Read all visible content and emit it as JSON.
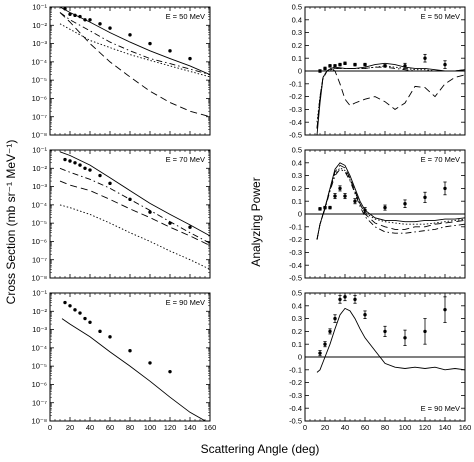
{
  "figure": {
    "xlabel": "Scattering Angle (deg)",
    "ylabel_left": "Cross Section (mb sr⁻¹ MeV⁻¹)",
    "ylabel_right": "Analyzing Power"
  },
  "chart_data": [
    {
      "type": "line",
      "quantity": "cross_section",
      "energy_label": "E = 50 MeV",
      "ylog": true,
      "xlim": [
        0,
        160
      ],
      "ylim": [
        1e-08,
        0.1
      ],
      "xticks": [
        0,
        20,
        40,
        60,
        80,
        100,
        120,
        140,
        160
      ],
      "yticks": [
        1e-08,
        1e-07,
        1e-06,
        1e-05,
        0.0001,
        0.001,
        0.01,
        0.1
      ],
      "ytick_labels": [
        "10⁻⁸",
        "10⁻⁷",
        "10⁻⁶",
        "10⁻⁵",
        "10⁻⁴",
        "10⁻³",
        "10⁻²",
        "10⁻¹"
      ],
      "data_points": {
        "x": [
          15,
          20,
          25,
          30,
          35,
          40,
          50,
          60,
          80,
          100,
          120,
          140
        ],
        "y": [
          0.08,
          0.04,
          0.035,
          0.03,
          0.02,
          0.02,
          0.012,
          0.007,
          0.003,
          0.001,
          0.0004,
          0.00015
        ]
      },
      "curves": [
        {
          "style": "solid",
          "x": [
            10,
            20,
            40,
            60,
            80,
            100,
            120,
            140,
            160
          ],
          "y": [
            0.1,
            0.05,
            0.015,
            0.004,
            0.0012,
            0.0004,
            0.00015,
            6e-05,
            2e-05
          ]
        },
        {
          "style": "dashdot",
          "x": [
            10,
            20,
            40,
            60,
            80,
            100,
            120,
            140,
            160
          ],
          "y": [
            0.05,
            0.02,
            0.005,
            0.0012,
            0.0004,
            0.00015,
            8e-05,
            4e-05,
            2e-05
          ]
        },
        {
          "style": "dotted",
          "x": [
            10,
            20,
            40,
            60,
            80,
            100,
            120,
            140,
            160
          ],
          "y": [
            0.012,
            0.006,
            0.0015,
            0.0006,
            0.00025,
            0.00012,
            6e-05,
            3e-05,
            1.5e-05
          ]
        },
        {
          "style": "dashed",
          "x": [
            10,
            20,
            40,
            60,
            80,
            100,
            120,
            140,
            160
          ],
          "y": [
            0.05,
            0.015,
            0.001,
            0.0001,
            1.5e-05,
            2.5e-06,
            6e-07,
            2e-07,
            1e-07
          ]
        }
      ]
    },
    {
      "type": "line",
      "quantity": "analyzing_power",
      "energy_label": "E = 50 MeV",
      "xlim": [
        0,
        160
      ],
      "ylim": [
        -0.5,
        0.5
      ],
      "xticks": [
        0,
        20,
        40,
        60,
        80,
        100,
        120,
        140,
        160
      ],
      "yticks": [
        -0.5,
        -0.4,
        -0.3,
        -0.2,
        -0.1,
        0,
        0.1,
        0.2,
        0.3,
        0.4,
        0.5
      ],
      "ytick_labels": [
        "-0.5",
        "-0.4",
        "-0.3",
        "-0.2",
        "-0.1",
        "0",
        "0.1",
        "0.2",
        "0.3",
        "0.4",
        "0.5"
      ],
      "zero_line": 0,
      "data_points": {
        "x": [
          15,
          20,
          25,
          30,
          35,
          40,
          50,
          60,
          80,
          100,
          120,
          140
        ],
        "y": [
          0.0,
          0.02,
          0.04,
          0.04,
          0.05,
          0.06,
          0.05,
          0.05,
          0.04,
          0.04,
          0.1,
          0.05
        ],
        "err": [
          0.01,
          0.01,
          0.01,
          0.01,
          0.01,
          0.01,
          0.01,
          0.01,
          0.01,
          0.02,
          0.03,
          0.03
        ]
      },
      "curves": [
        {
          "style": "solid",
          "x": [
            12,
            15,
            18,
            22,
            26,
            30,
            40,
            50,
            60,
            70,
            80,
            90,
            100,
            110,
            120,
            130,
            140,
            150,
            160
          ],
          "y": [
            -0.5,
            -0.25,
            -0.05,
            0.0,
            0.02,
            0.03,
            0.02,
            0.02,
            0.03,
            0.05,
            0.06,
            0.05,
            0.03,
            0.02,
            0.02,
            0.01,
            0.0,
            0.0,
            0.01
          ]
        },
        {
          "style": "dotted",
          "x": [
            12,
            15,
            18,
            22,
            26,
            30,
            40,
            50,
            60,
            70,
            80,
            90,
            100,
            110,
            120,
            130,
            140,
            150,
            160
          ],
          "y": [
            -0.4,
            -0.2,
            -0.05,
            0.0,
            0.01,
            0.02,
            0.02,
            0.02,
            0.02,
            0.03,
            0.04,
            0.03,
            0.02,
            0.01,
            0.01,
            0.0,
            0.0,
            0.0,
            0.01
          ]
        },
        {
          "style": "dashdot",
          "x": [
            12,
            15,
            18,
            22,
            26,
            30,
            40,
            50,
            60,
            70,
            80,
            90,
            100,
            110,
            120,
            130,
            140,
            150,
            160
          ],
          "y": [
            -0.45,
            -0.22,
            -0.06,
            0.0,
            0.01,
            0.02,
            0.02,
            0.02,
            0.02,
            0.03,
            0.03,
            0.02,
            0.01,
            0.0,
            0.0,
            0.0,
            0.0,
            0.0,
            0.01
          ]
        },
        {
          "style": "dashed",
          "x": [
            12,
            15,
            18,
            22,
            26,
            30,
            35,
            40,
            45,
            50,
            60,
            70,
            80,
            90,
            100,
            110,
            120,
            130,
            140,
            150,
            160
          ],
          "y": [
            -0.45,
            -0.2,
            -0.05,
            0.0,
            0.02,
            0.0,
            -0.1,
            -0.22,
            -0.27,
            -0.25,
            -0.22,
            -0.2,
            -0.24,
            -0.3,
            -0.25,
            -0.12,
            -0.13,
            -0.2,
            -0.1,
            -0.05,
            -0.03
          ]
        }
      ]
    },
    {
      "type": "line",
      "quantity": "cross_section",
      "energy_label": "E = 70 MeV",
      "ylog": true,
      "xlim": [
        0,
        160
      ],
      "ylim": [
        1e-08,
        0.1
      ],
      "xticks": [
        0,
        20,
        40,
        60,
        80,
        100,
        120,
        140,
        160
      ],
      "yticks": [
        1e-08,
        1e-07,
        1e-06,
        1e-05,
        0.0001,
        0.001,
        0.01,
        0.1
      ],
      "ytick_labels": [
        "10⁻⁸",
        "10⁻⁷",
        "10⁻⁶",
        "10⁻⁵",
        "10⁻⁴",
        "10⁻³",
        "10⁻²",
        "10⁻¹"
      ],
      "data_points": {
        "x": [
          15,
          20,
          25,
          30,
          35,
          40,
          50,
          60,
          80,
          100,
          120,
          140
        ],
        "y": [
          0.03,
          0.025,
          0.02,
          0.015,
          0.01,
          0.008,
          0.004,
          0.0015,
          0.0002,
          4e-05,
          1e-05,
          6e-06
        ]
      },
      "curves": [
        {
          "style": "solid",
          "x": [
            10,
            20,
            40,
            60,
            80,
            100,
            120,
            140,
            160
          ],
          "y": [
            0.08,
            0.05,
            0.015,
            0.003,
            0.0006,
            0.00012,
            3e-05,
            8e-06,
            2e-06
          ]
        },
        {
          "style": "dashdot",
          "x": [
            10,
            20,
            40,
            60,
            80,
            100,
            120,
            140,
            160
          ],
          "y": [
            0.01,
            0.006,
            0.0025,
            0.0008,
            0.0002,
            5e-05,
            1.2e-05,
            3e-06,
            8e-07
          ]
        },
        {
          "style": "dotted",
          "x": [
            10,
            20,
            40,
            60,
            80,
            100,
            120,
            140,
            160
          ],
          "y": [
            0.0001,
            7e-05,
            3e-05,
            1e-05,
            3e-06,
            1e-06,
            3e-07,
            1e-07,
            3e-08
          ]
        },
        {
          "style": "dashed",
          "x": [
            10,
            20,
            40,
            60,
            80,
            100,
            120,
            140,
            160
          ],
          "y": [
            0.002,
            0.0012,
            0.0006,
            0.0002,
            6e-05,
            2e-05,
            6e-06,
            2e-06,
            6e-07
          ]
        }
      ]
    },
    {
      "type": "line",
      "quantity": "analyzing_power",
      "energy_label": "E = 70 MeV",
      "xlim": [
        0,
        160
      ],
      "ylim": [
        -0.5,
        0.5
      ],
      "xticks": [
        0,
        20,
        40,
        60,
        80,
        100,
        120,
        140,
        160
      ],
      "yticks": [
        -0.5,
        -0.4,
        -0.3,
        -0.2,
        -0.1,
        0,
        0.1,
        0.2,
        0.3,
        0.4,
        0.5
      ],
      "ytick_labels": [
        "-0.5",
        "-0.4",
        "-0.3",
        "-0.2",
        "-0.1",
        "0",
        "0.1",
        "0.2",
        "0.3",
        "0.4",
        "0.5"
      ],
      "zero_line": 0,
      "data_points": {
        "x": [
          15,
          20,
          25,
          30,
          35,
          40,
          50,
          60,
          80,
          100,
          120,
          140
        ],
        "y": [
          0.04,
          0.05,
          0.05,
          0.14,
          0.2,
          0.14,
          0.1,
          0.03,
          0.05,
          0.08,
          0.13,
          0.2
        ],
        "err": [
          0.01,
          0.01,
          0.01,
          0.02,
          0.02,
          0.02,
          0.02,
          0.02,
          0.02,
          0.03,
          0.04,
          0.05
        ]
      },
      "curves": [
        {
          "style": "solid",
          "x": [
            12,
            15,
            20,
            25,
            30,
            35,
            40,
            45,
            50,
            55,
            60,
            70,
            80,
            90,
            100,
            110,
            120,
            130,
            140,
            150,
            160
          ],
          "y": [
            -0.2,
            -0.08,
            0.05,
            0.2,
            0.35,
            0.4,
            0.38,
            0.3,
            0.2,
            0.1,
            0.03,
            -0.03,
            -0.05,
            -0.05,
            -0.06,
            -0.06,
            -0.05,
            -0.05,
            -0.04,
            -0.04,
            -0.03
          ]
        },
        {
          "style": "dashed",
          "x": [
            12,
            15,
            20,
            25,
            30,
            35,
            40,
            45,
            50,
            55,
            60,
            70,
            80,
            90,
            100,
            110,
            120,
            130,
            140,
            150,
            160
          ],
          "y": [
            -0.2,
            -0.08,
            0.05,
            0.2,
            0.33,
            0.38,
            0.36,
            0.28,
            0.18,
            0.08,
            0.0,
            -0.07,
            -0.1,
            -0.12,
            -0.12,
            -0.1,
            -0.1,
            -0.08,
            -0.07,
            -0.06,
            -0.05
          ]
        },
        {
          "style": "dashdot",
          "x": [
            12,
            15,
            20,
            25,
            30,
            35,
            40,
            45,
            50,
            55,
            60,
            70,
            80,
            90,
            100,
            110,
            120,
            130,
            140,
            150,
            160
          ],
          "y": [
            -0.2,
            -0.08,
            0.04,
            0.18,
            0.3,
            0.35,
            0.33,
            0.26,
            0.16,
            0.06,
            -0.02,
            -0.1,
            -0.14,
            -0.15,
            -0.15,
            -0.14,
            -0.13,
            -0.12,
            -0.1,
            -0.09,
            -0.08
          ]
        },
        {
          "style": "dotted",
          "x": [
            12,
            15,
            20,
            25,
            30,
            35,
            40,
            45,
            50,
            55,
            60,
            70,
            80,
            90,
            100,
            110,
            120,
            130,
            140,
            150,
            160
          ],
          "y": [
            -0.2,
            -0.08,
            0.05,
            0.19,
            0.31,
            0.36,
            0.34,
            0.27,
            0.17,
            0.08,
            0.01,
            -0.04,
            -0.06,
            -0.07,
            -0.08,
            -0.08,
            -0.08,
            -0.07,
            -0.06,
            -0.05,
            -0.04
          ]
        }
      ]
    },
    {
      "type": "line",
      "quantity": "cross_section",
      "energy_label": "E = 90 MeV",
      "ylog": true,
      "xlim": [
        0,
        160
      ],
      "ylim": [
        1e-08,
        0.1
      ],
      "xticks": [
        0,
        20,
        40,
        60,
        80,
        100,
        120,
        140,
        160
      ],
      "xtick_labels": [
        "0",
        "20",
        "40",
        "60",
        "80",
        "100",
        "120",
        "140",
        "160"
      ],
      "yticks": [
        1e-08,
        1e-07,
        1e-06,
        1e-05,
        0.0001,
        0.001,
        0.01,
        0.1
      ],
      "ytick_labels": [
        "10⁻⁸",
        "10⁻⁷",
        "10⁻⁶",
        "10⁻⁵",
        "10⁻⁴",
        "10⁻³",
        "10⁻²",
        "10⁻¹"
      ],
      "data_points": {
        "x": [
          15,
          20,
          25,
          30,
          35,
          40,
          50,
          60,
          80,
          100,
          120
        ],
        "y": [
          0.03,
          0.02,
          0.012,
          0.008,
          0.004,
          0.0025,
          0.0008,
          0.0004,
          7e-05,
          1.5e-05,
          5e-06
        ]
      },
      "curves": [
        {
          "style": "solid",
          "x": [
            12,
            20,
            40,
            60,
            80,
            100,
            120,
            140,
            160
          ],
          "y": [
            0.004,
            0.002,
            0.0004,
            6e-05,
            1e-05,
            1.5e-06,
            2e-07,
            3e-08,
            5e-09
          ]
        }
      ]
    },
    {
      "type": "line",
      "quantity": "analyzing_power",
      "energy_label": "E = 90 MeV",
      "xlim": [
        0,
        160
      ],
      "ylim": [
        -0.5,
        0.5
      ],
      "xticks": [
        0,
        20,
        40,
        60,
        80,
        100,
        120,
        140,
        160
      ],
      "xtick_labels": [
        "0",
        "20",
        "40",
        "60",
        "80",
        "100",
        "120",
        "140",
        "160"
      ],
      "yticks": [
        -0.5,
        -0.4,
        -0.3,
        -0.2,
        -0.1,
        0,
        0.1,
        0.2,
        0.3,
        0.4,
        0.5
      ],
      "ytick_labels": [
        "-0.5",
        "-0.4",
        "-0.3",
        "-0.2",
        "-0.1",
        "0",
        "0.1",
        "0.2",
        "0.3",
        "0.4",
        "0.5"
      ],
      "zero_line": 0,
      "data_points": {
        "x": [
          15,
          20,
          25,
          30,
          35,
          40,
          50,
          60,
          80,
          100,
          120,
          140
        ],
        "y": [
          0.03,
          0.1,
          0.2,
          0.3,
          0.45,
          0.47,
          0.45,
          0.33,
          0.2,
          0.15,
          0.2,
          0.37
        ],
        "err": [
          0.02,
          0.02,
          0.02,
          0.03,
          0.03,
          0.03,
          0.03,
          0.03,
          0.04,
          0.06,
          0.1,
          0.1
        ]
      },
      "curves": [
        {
          "style": "solid",
          "x": [
            12,
            15,
            20,
            25,
            30,
            35,
            40,
            45,
            50,
            55,
            60,
            70,
            80,
            90,
            100,
            110,
            120,
            130,
            140,
            150,
            160
          ],
          "y": [
            -0.12,
            -0.1,
            0.0,
            0.1,
            0.22,
            0.33,
            0.38,
            0.36,
            0.3,
            0.22,
            0.15,
            0.05,
            -0.05,
            -0.08,
            -0.09,
            -0.08,
            -0.09,
            -0.08,
            -0.1,
            -0.09,
            -0.1
          ]
        }
      ]
    }
  ]
}
